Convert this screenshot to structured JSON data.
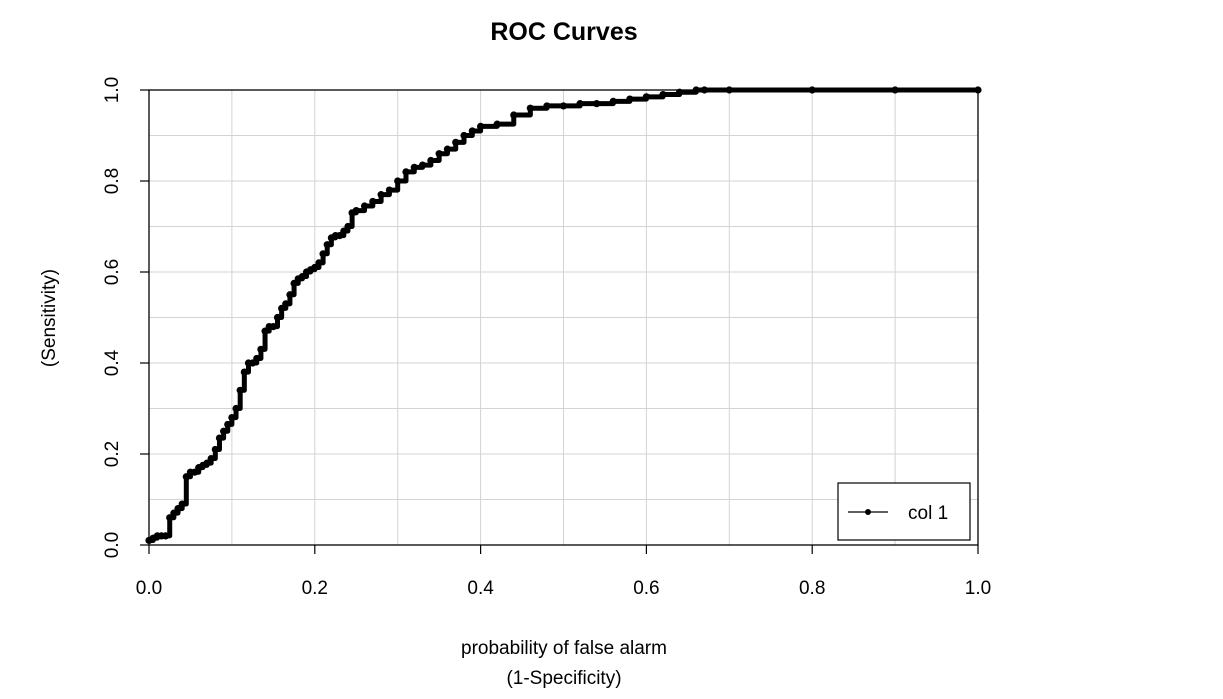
{
  "chart_data": {
    "type": "line",
    "title": "ROC Curves",
    "xlabel": [
      "probability of false alarm",
      "(1-Specificity)"
    ],
    "ylabel": [
      "(Sensitivity)"
    ],
    "xlim": [
      0,
      1
    ],
    "ylim": [
      0,
      1
    ],
    "xticks": [
      "0.0",
      "0.2",
      "0.4",
      "0.6",
      "0.8",
      "1.0"
    ],
    "yticks": [
      "0.0",
      "0.2",
      "0.4",
      "0.6",
      "0.8",
      "1.0"
    ],
    "grid": true,
    "legend": {
      "position": "bottom-right",
      "entries": [
        "col 1"
      ]
    },
    "series": [
      {
        "name": "col 1",
        "color": "#000000",
        "marker": "point",
        "x": [
          0.0,
          0.005,
          0.01,
          0.015,
          0.02,
          0.025,
          0.03,
          0.035,
          0.04,
          0.045,
          0.05,
          0.055,
          0.06,
          0.065,
          0.07,
          0.075,
          0.08,
          0.085,
          0.09,
          0.095,
          0.1,
          0.105,
          0.11,
          0.115,
          0.12,
          0.125,
          0.13,
          0.135,
          0.14,
          0.145,
          0.15,
          0.155,
          0.16,
          0.165,
          0.17,
          0.175,
          0.18,
          0.185,
          0.19,
          0.195,
          0.2,
          0.205,
          0.21,
          0.215,
          0.22,
          0.225,
          0.23,
          0.235,
          0.24,
          0.245,
          0.25,
          0.26,
          0.27,
          0.28,
          0.29,
          0.3,
          0.31,
          0.32,
          0.33,
          0.34,
          0.35,
          0.36,
          0.37,
          0.38,
          0.39,
          0.4,
          0.42,
          0.44,
          0.46,
          0.48,
          0.5,
          0.52,
          0.54,
          0.56,
          0.58,
          0.6,
          0.62,
          0.64,
          0.66,
          0.67,
          0.7,
          0.8,
          0.9,
          1.0
        ],
        "y": [
          0.01,
          0.015,
          0.02,
          0.02,
          0.02,
          0.06,
          0.07,
          0.08,
          0.09,
          0.15,
          0.16,
          0.16,
          0.17,
          0.175,
          0.18,
          0.19,
          0.21,
          0.235,
          0.25,
          0.265,
          0.28,
          0.3,
          0.34,
          0.38,
          0.4,
          0.4,
          0.41,
          0.43,
          0.47,
          0.48,
          0.48,
          0.5,
          0.52,
          0.53,
          0.55,
          0.575,
          0.585,
          0.59,
          0.6,
          0.605,
          0.61,
          0.62,
          0.64,
          0.66,
          0.675,
          0.68,
          0.68,
          0.69,
          0.7,
          0.73,
          0.735,
          0.745,
          0.755,
          0.77,
          0.78,
          0.8,
          0.82,
          0.83,
          0.835,
          0.845,
          0.86,
          0.87,
          0.885,
          0.9,
          0.91,
          0.92,
          0.925,
          0.945,
          0.96,
          0.965,
          0.965,
          0.97,
          0.97,
          0.975,
          0.98,
          0.985,
          0.99,
          0.995,
          1.0,
          1.0,
          1.0,
          1.0,
          1.0,
          1.0
        ]
      }
    ]
  }
}
